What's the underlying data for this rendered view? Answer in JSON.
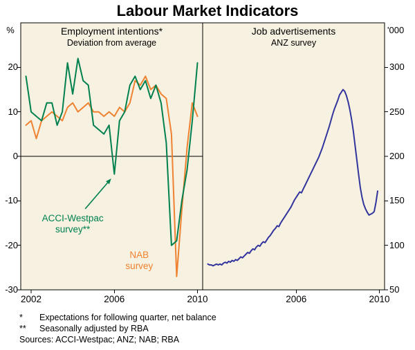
{
  "title": "Labour Market Indicators",
  "colors": {
    "plot_bg": "#f6f1e0",
    "axis": "#000000"
  },
  "chart_data": [
    {
      "type": "line",
      "title": "Employment intentions*",
      "subtitle": "Deviation from average",
      "unit": "%",
      "axis_side": "left",
      "ylim": [
        -30,
        30
      ],
      "yticks": [
        20,
        10,
        0,
        -10,
        -20,
        -30
      ],
      "xlim": [
        2001.5,
        2010.25
      ],
      "xticks": [
        2002,
        2006,
        2010
      ],
      "zero_line": true,
      "grid": false,
      "series": [
        {
          "name": "NAB survey",
          "color": "#ef8230",
          "x_start": 2001.75,
          "x_step": 0.25,
          "values": [
            7,
            8,
            4,
            8,
            9,
            10,
            9,
            8,
            11,
            12,
            10,
            11,
            12,
            10,
            10,
            9,
            10,
            9,
            11,
            10,
            12,
            17,
            16,
            18,
            15,
            16,
            14,
            13,
            5,
            -27,
            -12,
            2,
            12,
            9
          ]
        },
        {
          "name": "ACCI-Westpac survey**",
          "color": "#00804f",
          "x_start": 2001.75,
          "x_step": 0.25,
          "values": [
            18,
            10,
            9,
            8,
            12,
            12,
            7,
            10,
            21,
            14,
            22,
            17,
            16,
            7,
            6,
            5,
            7,
            -4,
            8,
            10,
            16,
            18,
            15,
            17,
            13,
            16,
            12,
            3,
            -20,
            -19,
            -10,
            -3,
            8,
            21
          ]
        }
      ],
      "annotations": [
        {
          "text": "ACCI-Westpac\nsurvey**",
          "x": 2004.0,
          "y": -15.2,
          "color": "#00804f",
          "arrow": {
            "from": [
              2004.6,
              -11.8
            ],
            "to": [
              2005.85,
              -5.0
            ]
          }
        },
        {
          "text": "NAB\nsurvey",
          "x": 2007.2,
          "y": -23.5,
          "color": "#ef8230"
        }
      ]
    },
    {
      "type": "line",
      "title": "Job advertisements",
      "subtitle": "ANZ survey",
      "unit": "'000",
      "axis_side": "right",
      "ylim": [
        50,
        350
      ],
      "yticks": [
        300,
        250,
        200,
        150,
        100,
        50
      ],
      "xlim": [
        2001.5,
        2010.25
      ],
      "xticks": [
        2006,
        2010
      ],
      "zero_line": false,
      "grid": false,
      "series": [
        {
          "name": "ANZ job advertisements",
          "color": "#32349e",
          "x_start": 2001.75,
          "x_step": 0.0833333,
          "values": [
            79,
            78,
            78,
            77,
            78,
            79,
            78,
            79,
            78,
            80,
            81,
            80,
            82,
            81,
            83,
            82,
            84,
            83,
            85,
            87,
            86,
            88,
            90,
            92,
            91,
            94,
            96,
            95,
            98,
            100,
            99,
            102,
            104,
            103,
            106,
            109,
            111,
            114,
            117,
            119,
            122,
            121,
            125,
            128,
            131,
            134,
            137,
            140,
            143,
            147,
            151,
            154,
            157,
            160,
            159,
            163,
            167,
            171,
            175,
            179,
            183,
            187,
            191,
            195,
            199,
            204,
            209,
            215,
            221,
            227,
            233,
            240,
            247,
            253,
            258,
            263,
            269,
            272,
            275,
            273,
            268,
            261,
            252,
            241,
            228,
            212,
            196,
            180,
            165,
            154,
            146,
            141,
            137,
            134,
            135,
            136,
            138,
            148,
            161
          ]
        }
      ],
      "annotations": []
    }
  ],
  "footnotes": [
    {
      "marker": "*",
      "text": "Expectations for following quarter, net balance"
    },
    {
      "marker": "**",
      "text": "Seasonally adjusted by RBA"
    }
  ],
  "sources": "Sources: ACCI-Westpac; ANZ; NAB; RBA"
}
